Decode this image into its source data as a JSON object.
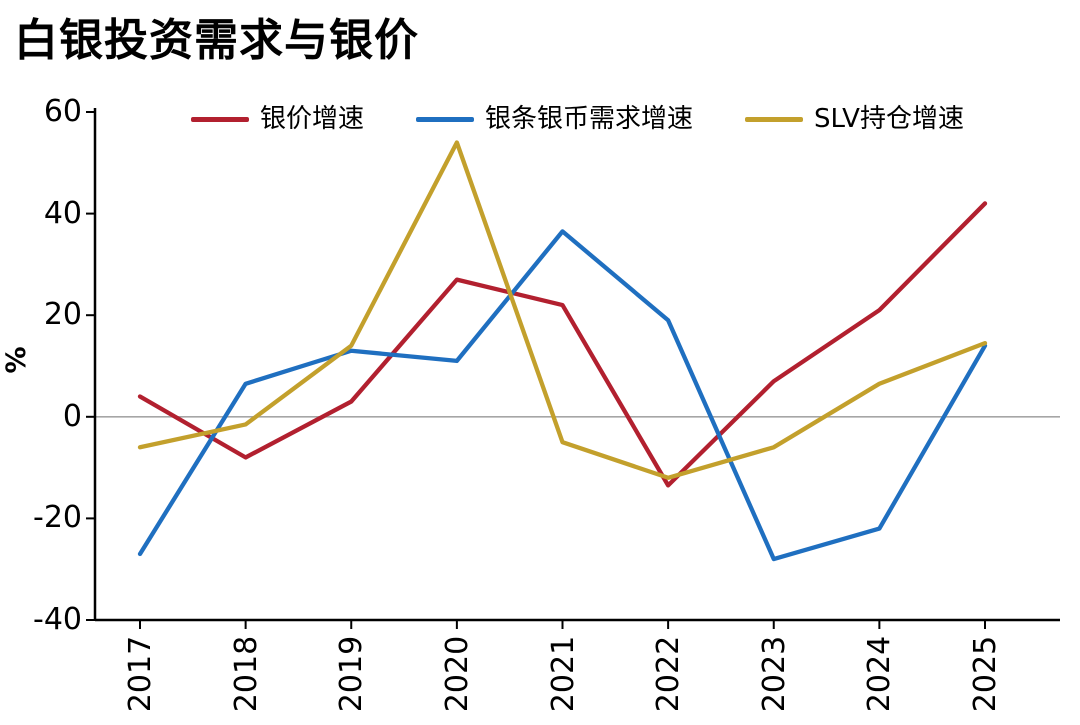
{
  "chart_data": {
    "type": "line",
    "title": "白银投资需求与银价",
    "ylabel": "%",
    "categories": [
      "2017",
      "2018",
      "2019",
      "2020",
      "2021",
      "2022",
      "2023",
      "2024",
      "2025"
    ],
    "yticks": [
      60,
      40,
      20,
      0,
      -20,
      -40
    ],
    "ylim": [
      -40,
      60
    ],
    "grid": false,
    "zero_line": true,
    "zero_line_color": "#a6a6a6",
    "axis_color": "#000000",
    "legend_position": "top",
    "series": [
      {
        "name": "银价增速",
        "color": "#b2202f",
        "values": [
          4,
          -8,
          3,
          27,
          22,
          -13.5,
          7,
          21,
          42
        ]
      },
      {
        "name": "银条银币需求增速",
        "color": "#1f6fc0",
        "values": [
          -27,
          6.5,
          13,
          11,
          36.5,
          19,
          -28,
          -22,
          14
        ]
      },
      {
        "name": "SLV持仓增速",
        "color": "#c3a02c",
        "values": [
          -6,
          -1.5,
          14,
          54,
          -5,
          -12,
          -6,
          6.5,
          14.5
        ]
      }
    ]
  }
}
